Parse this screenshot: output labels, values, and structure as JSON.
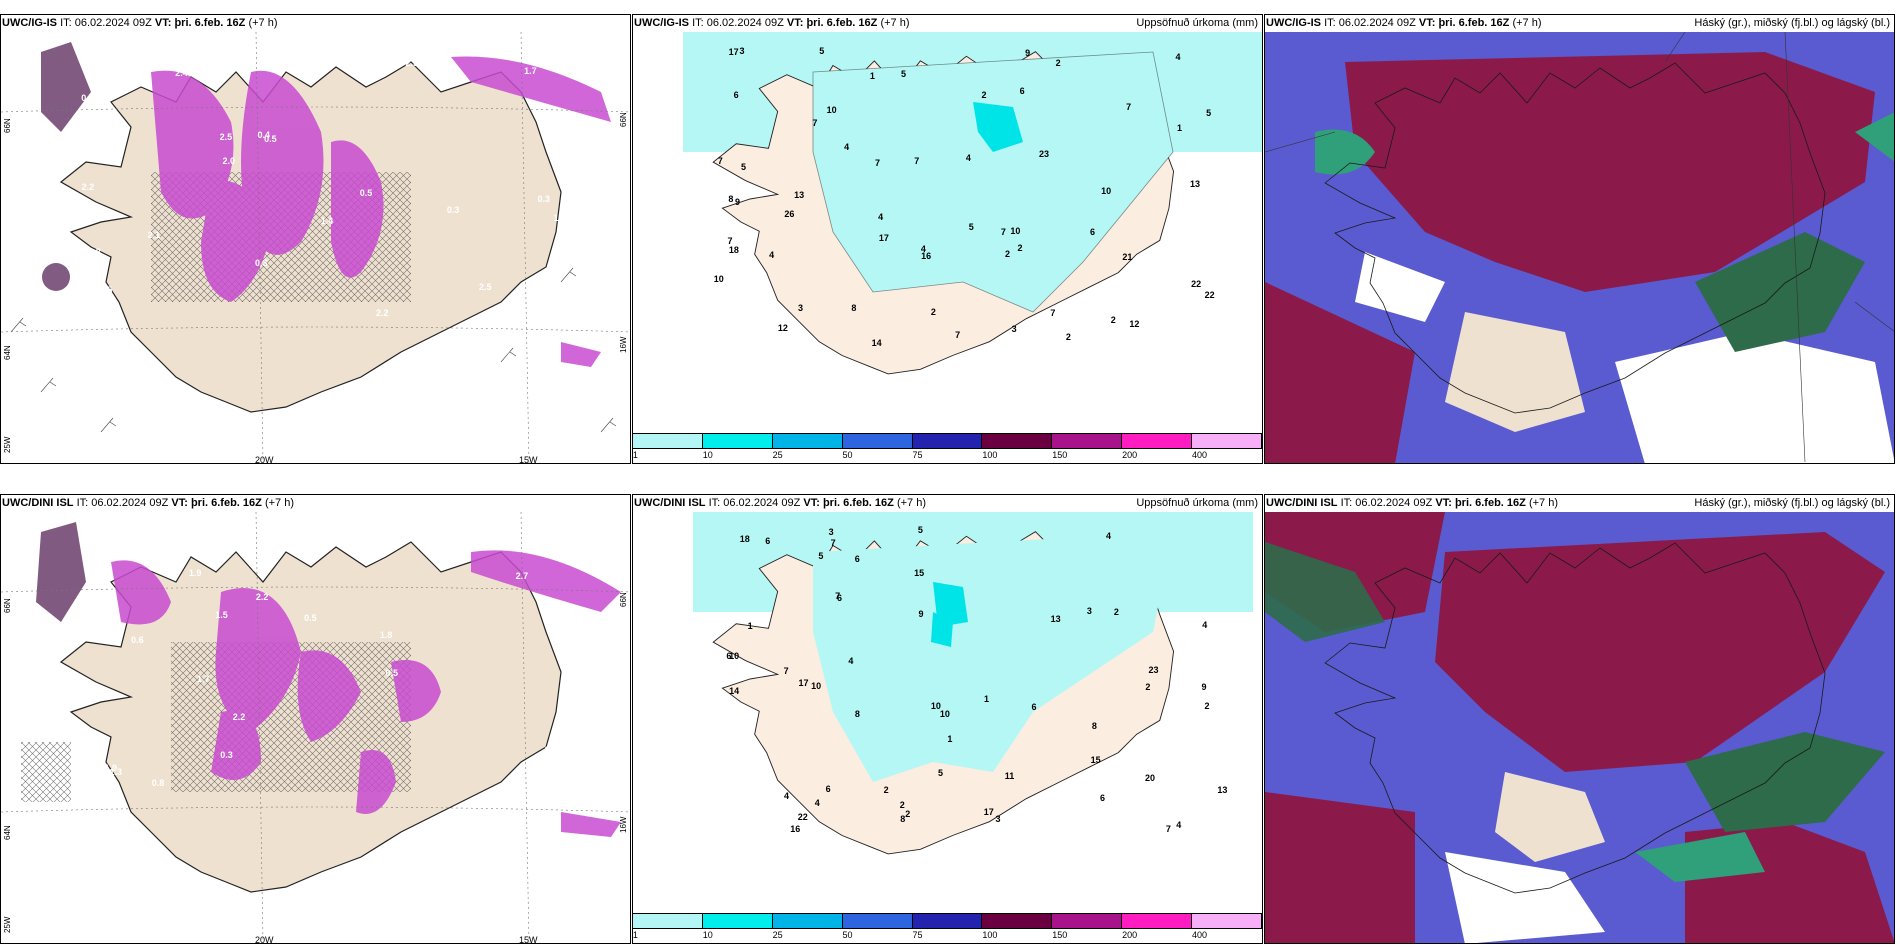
{
  "panels": [
    {
      "id": "p1",
      "model": "UWC/IG-IS",
      "it_label": "IT:",
      "it": "06.02.2024 09Z",
      "vt_label": "VT:",
      "vt": "þri. 6.feb. 16Z",
      "lead": "(+7 h)",
      "right_title": "",
      "values": [
        "0.3",
        "0.3",
        "0.5",
        "2.4",
        "0.5",
        "2.5",
        "1.8",
        "2.3",
        "2.5",
        "2.2",
        "0.8",
        "2.2",
        "2.5",
        "1.6",
        "0.3",
        "2.7",
        "1.4",
        "0.5",
        "0.4",
        "2.1",
        "0.6",
        "1.7",
        "2.0",
        "1.3",
        "2.9"
      ],
      "lon_labels": [
        "20W",
        "15W"
      ],
      "lat_labels": [
        "66N",
        "64N",
        "25W",
        "16W",
        "66N"
      ]
    },
    {
      "id": "p2",
      "model": "UWC/IG-IS",
      "it_label": "IT:",
      "it": "06.02.2024 09Z",
      "vt_label": "VT:",
      "vt": "þri. 6.feb. 16Z",
      "lead": "(+7 h)",
      "right_title": "Uppsöfnuð úrkoma (mm)",
      "values": [
        "2",
        "5",
        "4",
        "2",
        "4",
        "7",
        "10",
        "10",
        "7",
        "4",
        "3",
        "7",
        "4",
        "4",
        "21",
        "22",
        "23",
        "18",
        "14",
        "7",
        "7",
        "7",
        "16",
        "12",
        "17",
        "9",
        "7",
        "9",
        "26",
        "22",
        "13",
        "17",
        "5",
        "6",
        "5",
        "5",
        "2",
        "10",
        "12",
        "10",
        "13",
        "2",
        "5",
        "1",
        "2",
        "4",
        "2",
        "3",
        "2",
        "1",
        "6",
        "7",
        "8",
        "3",
        "6",
        "7",
        "8"
      ],
      "colorbar": {
        "colors": [
          "#b3f6f5",
          "#00eded",
          "#00b4e8",
          "#2d64e0",
          "#2323b0",
          "#6a0040",
          "#a8128a",
          "#ff1cc0",
          "#f7b0f7"
        ],
        "labels": [
          "1",
          "10",
          "25",
          "50",
          "75",
          "100",
          "150",
          "200",
          "400"
        ]
      }
    },
    {
      "id": "p3",
      "model": "UWC/IG-IS",
      "it_label": "IT:",
      "it": "06.02.2024 09Z",
      "vt_label": "VT:",
      "vt": "þri. 6.feb. 16Z",
      "lead": "(+7 h)",
      "right_title": "Háský (gr.), miðský (fj.bl.) og lágský (bl.)"
    },
    {
      "id": "p4",
      "model": "UWC/DINI ISL",
      "it_label": "IT:",
      "it": "06.02.2024 09Z",
      "vt_label": "VT:",
      "vt": "þri. 6.feb. 16Z",
      "lead": "(+7 h)",
      "right_title": "",
      "values": [
        "0.3",
        "0.2",
        "0.5",
        "0.8",
        "1.7",
        "1.8",
        "3.8",
        "2.2",
        "1.7",
        "1.9",
        "1.5",
        "2.7",
        "1.9",
        "2.2",
        "0.5",
        "0.5",
        "0.3",
        "1.2",
        "0.3",
        "0.6",
        "1.3"
      ],
      "lon_labels": [
        "20W",
        "15W"
      ],
      "lat_labels": [
        "66N",
        "64N",
        "25W",
        "16W",
        "66N"
      ]
    },
    {
      "id": "p5",
      "model": "UWC/DINI ISL",
      "it_label": "IT:",
      "it": "06.02.2024 09Z",
      "vt_label": "VT:",
      "vt": "þri. 6.feb. 16Z",
      "lead": "(+7 h)",
      "right_title": "Uppsöfnuð úrkoma (mm)",
      "values": [
        "4",
        "3",
        "4",
        "1",
        "1",
        "6",
        "8",
        "7",
        "8",
        "17",
        "5",
        "4",
        "7",
        "7",
        "10",
        "13",
        "14",
        "15",
        "18",
        "22",
        "10",
        "13",
        "6",
        "6",
        "16",
        "15",
        "10",
        "23",
        "20",
        "17",
        "6",
        "6",
        "9",
        "7",
        "2",
        "2",
        "11",
        "10",
        "2",
        "1",
        "2",
        "2",
        "3",
        "4",
        "6",
        "5",
        "4",
        "9",
        "3",
        "2",
        "5",
        "4",
        "8",
        "6"
      ],
      "colorbar": {
        "colors": [
          "#b3f6f5",
          "#00eded",
          "#00b4e8",
          "#2d64e0",
          "#2323b0",
          "#6a0040",
          "#a8128a",
          "#ff1cc0",
          "#f7b0f7"
        ],
        "labels": [
          "1",
          "10",
          "25",
          "50",
          "75",
          "100",
          "150",
          "200",
          "400"
        ]
      }
    },
    {
      "id": "p6",
      "model": "UWC/DINI ISL",
      "it_label": "IT:",
      "it": "06.02.2024 09Z",
      "vt_label": "VT:",
      "vt": "þri. 6.feb. 16Z",
      "lead": "(+7 h)",
      "right_title": "Háský (gr.), miðský (fj.bl.) og lágský (bl.)"
    }
  ]
}
